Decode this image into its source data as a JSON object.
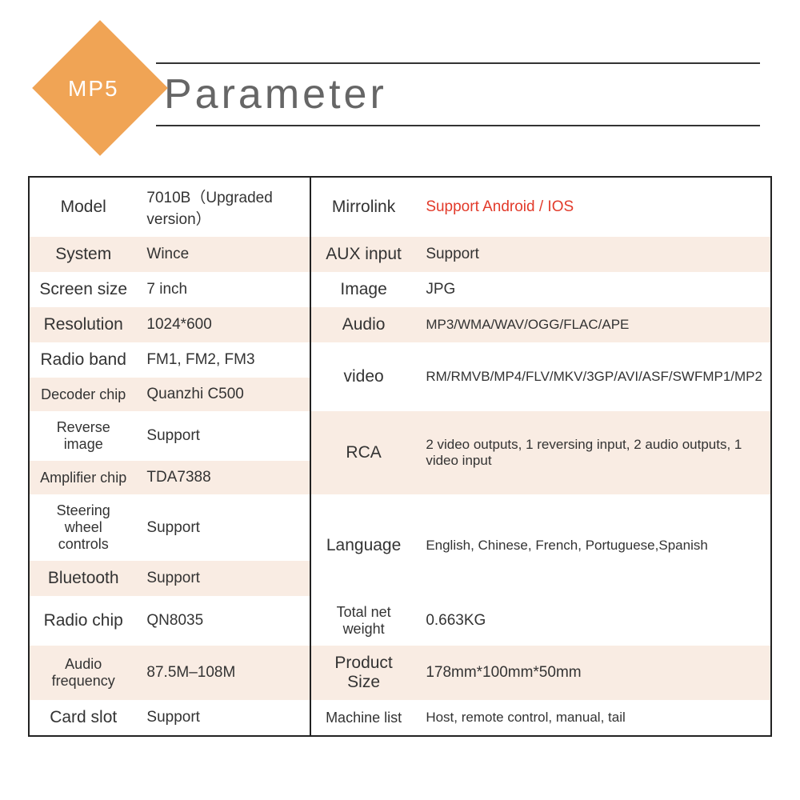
{
  "header": {
    "badge": "MP5",
    "title": "Parameter"
  },
  "colors": {
    "accent": "#f0a455",
    "stripe": "#f9ece3",
    "border": "#222222",
    "text": "#333333",
    "highlight": "#e23a2a"
  },
  "left": [
    {
      "label": "Model",
      "value": "7010B（Upgraded version）"
    },
    {
      "label": "System",
      "value": "Wince"
    },
    {
      "label": "Screen size",
      "value": "7 inch"
    },
    {
      "label": "Resolution",
      "value": "1024*600"
    },
    {
      "label": "Radio band",
      "value": "FM1, FM2, FM3"
    },
    {
      "label": "Decoder chip",
      "value": "Quanzhi C500"
    },
    {
      "label": "Reverse image",
      "value": "Support"
    },
    {
      "label": "Amplifier chip",
      "value": "TDA7388"
    },
    {
      "label": "Steering wheel controls",
      "value": "Support"
    },
    {
      "label": "Bluetooth",
      "value": "Support"
    },
    {
      "label": "Radio chip",
      "value": "QN8035"
    },
    {
      "label": "Audio frequency",
      "value": "87.5M–108M"
    },
    {
      "label": "Card slot",
      "value": "Support"
    }
  ],
  "right": [
    {
      "label": "Mirrolink",
      "value": "Support Android / IOS",
      "highlight": true
    },
    {
      "label": "AUX input",
      "value": "Support"
    },
    {
      "label": "Image",
      "value": "JPG"
    },
    {
      "label": "Audio",
      "value": "MP3/WMA/WAV/OGG/FLAC/APE"
    },
    {
      "label": "video",
      "value": "RM/RMVB/MP4/FLV/MKV/3GP/AVI/ASF/SWFMP1/MP2"
    },
    {
      "label": "RCA",
      "value": "2 video outputs, 1 reversing input, 2 audio outputs, 1 video input"
    },
    {
      "label": "Language",
      "value": "English, Chinese, French, Portuguese,Spanish"
    },
    {
      "label": "Total net weight",
      "value": "0.663KG"
    },
    {
      "label": "Product Size",
      "value": "178mm*100mm*50mm"
    },
    {
      "label": "Machine list",
      "value": "Host, remote control, manual, tail"
    }
  ]
}
